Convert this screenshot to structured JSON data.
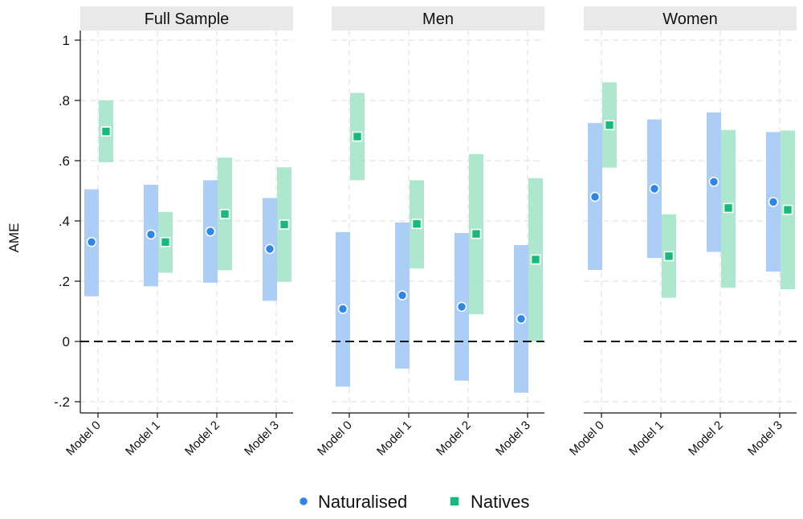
{
  "chart_data": {
    "type": "scatter",
    "subtype": "coefficient-plot-with-confidence-intervals",
    "ylabel": "AME",
    "ylim": [
      -0.2,
      1.0
    ],
    "yticks": [
      -0.2,
      0,
      0.2,
      0.4,
      0.6,
      0.8,
      1.0
    ],
    "ytick_labels": [
      "-.2",
      "0",
      ".2",
      ".4",
      ".6",
      ".8",
      "1"
    ],
    "reference_line": 0,
    "grid": true,
    "categories": [
      "Model 0",
      "Model 1",
      "Model 2",
      "Model 3"
    ],
    "legend": {
      "position": "bottom",
      "entries": [
        {
          "name": "Naturalised",
          "marker": "circle",
          "color": "#2f86e6",
          "band_color": "#a8cbf5"
        },
        {
          "name": "Natives",
          "marker": "square",
          "color": "#18b97e",
          "band_color": "#9fe3c4"
        }
      ]
    },
    "panels": [
      {
        "title": "Full Sample",
        "series": [
          {
            "name": "Naturalised",
            "estimates": [
              0.33,
              0.355,
              0.365,
              0.307
            ],
            "ci_low": [
              0.15,
              0.183,
              0.195,
              0.135
            ],
            "ci_high": [
              0.505,
              0.52,
              0.535,
              0.476
            ]
          },
          {
            "name": "Natives",
            "estimates": [
              0.697,
              0.33,
              0.423,
              0.388
            ],
            "ci_low": [
              0.595,
              0.228,
              0.236,
              0.198
            ],
            "ci_high": [
              0.8,
              0.43,
              0.61,
              0.578
            ]
          }
        ]
      },
      {
        "title": "Men",
        "series": [
          {
            "name": "Naturalised",
            "estimates": [
              0.108,
              0.153,
              0.115,
              0.075
            ],
            "ci_low": [
              -0.15,
              -0.09,
              -0.13,
              -0.17
            ],
            "ci_high": [
              0.363,
              0.395,
              0.36,
              0.32
            ]
          },
          {
            "name": "Natives",
            "estimates": [
              0.68,
              0.39,
              0.357,
              0.272
            ],
            "ci_low": [
              0.535,
              0.242,
              0.09,
              0.0
            ],
            "ci_high": [
              0.825,
              0.535,
              0.622,
              0.542
            ]
          }
        ]
      },
      {
        "title": "Women",
        "series": [
          {
            "name": "Naturalised",
            "estimates": [
              0.48,
              0.507,
              0.53,
              0.463
            ],
            "ci_low": [
              0.237,
              0.277,
              0.297,
              0.232
            ],
            "ci_high": [
              0.725,
              0.737,
              0.76,
              0.695
            ]
          },
          {
            "name": "Natives",
            "estimates": [
              0.718,
              0.283,
              0.443,
              0.437
            ],
            "ci_low": [
              0.577,
              0.145,
              0.178,
              0.173
            ],
            "ci_high": [
              0.86,
              0.422,
              0.702,
              0.7
            ]
          }
        ]
      }
    ]
  }
}
